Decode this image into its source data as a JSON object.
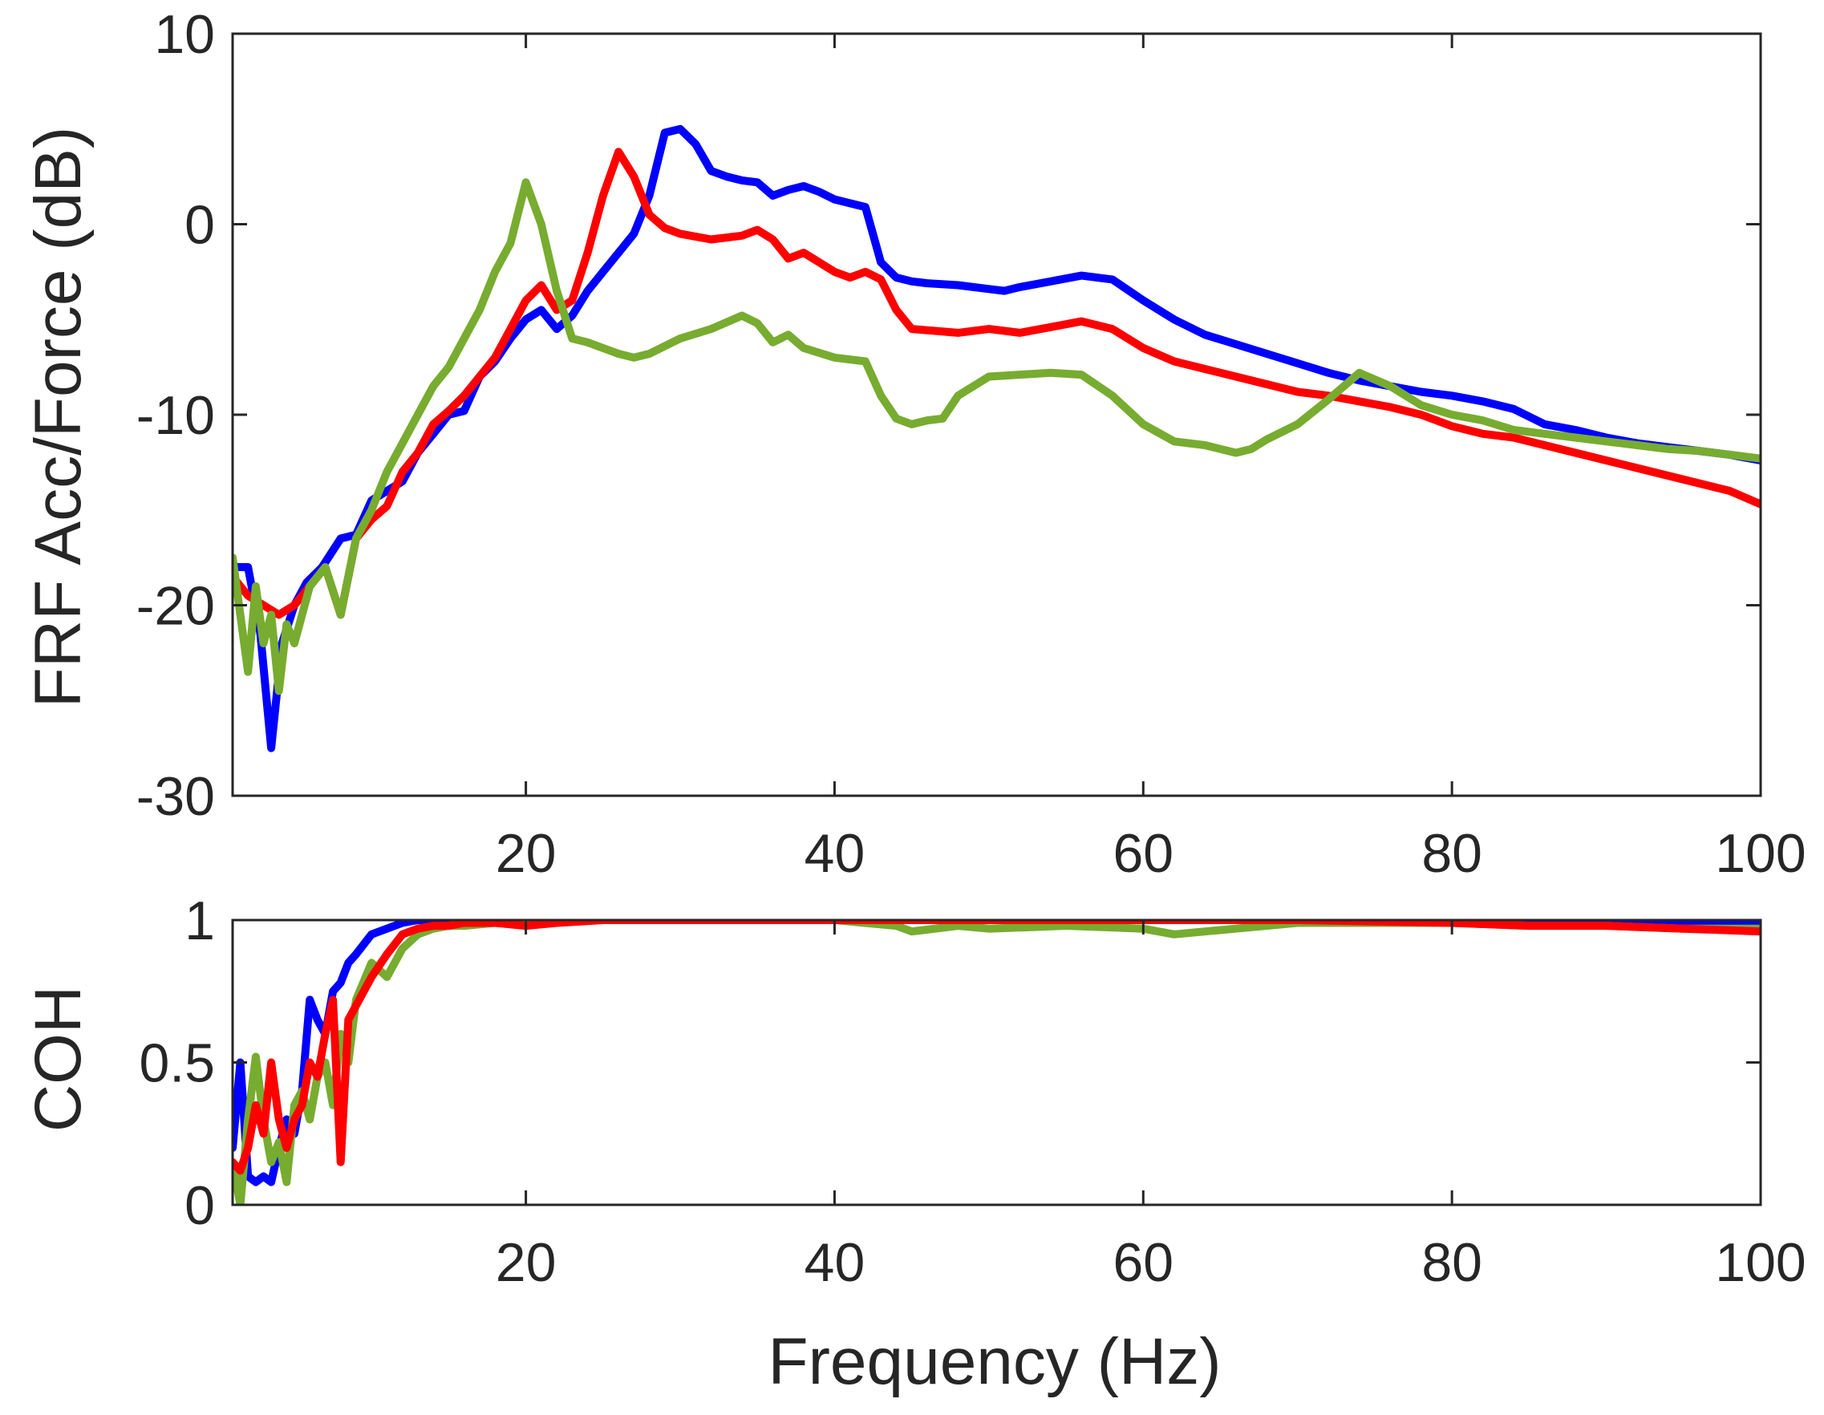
{
  "chart_data": [
    {
      "type": "line",
      "ylabel": "FRF Acc/Force (dB)",
      "xlabel": "",
      "xlim": [
        1,
        100
      ],
      "ylim": [
        -30,
        10
      ],
      "xticks": [
        20,
        40,
        60,
        80,
        100
      ],
      "yticks": [
        -30,
        -20,
        -10,
        0,
        10
      ],
      "xtick_labels": [
        "20",
        "40",
        "60",
        "80",
        "100"
      ],
      "ytick_labels": [
        "-30",
        "-20",
        "-10",
        "0",
        "10"
      ],
      "grid": false,
      "legend": null,
      "series": [
        {
          "name": "blue",
          "color": "#0000FF",
          "x": [
            1,
            2,
            2.8,
            3.5,
            4.2,
            5,
            5.8,
            6.8,
            8,
            9,
            10,
            11,
            12,
            13,
            14,
            15,
            16,
            17,
            18,
            19,
            20,
            21,
            22,
            23,
            24,
            25,
            26,
            27,
            28,
            29,
            30,
            31,
            32,
            33,
            34,
            35,
            36,
            37,
            38,
            39,
            40,
            41,
            42,
            43,
            44,
            45,
            46,
            48,
            50,
            51,
            52,
            54,
            56,
            58,
            60,
            62,
            64,
            66,
            68,
            70,
            72,
            74,
            76,
            78,
            80,
            82,
            84,
            86,
            88,
            90,
            92,
            94,
            96,
            98,
            100
          ],
          "y": [
            -18,
            -18,
            -21.5,
            -27.5,
            -22,
            -20,
            -18.8,
            -18,
            -16.5,
            -16.3,
            -14.5,
            -14,
            -13.5,
            -12,
            -11,
            -10,
            -9.8,
            -8,
            -7.2,
            -6,
            -5,
            -4.5,
            -5.5,
            -4.8,
            -3.5,
            -2.5,
            -1.5,
            -0.5,
            1.5,
            4.8,
            5,
            4.2,
            2.8,
            2.5,
            2.3,
            2.2,
            1.5,
            1.8,
            2.0,
            1.7,
            1.3,
            1.1,
            0.9,
            -2.0,
            -2.8,
            -3.0,
            -3.1,
            -3.2,
            -3.4,
            -3.5,
            -3.3,
            -3.0,
            -2.7,
            -2.9,
            -4.0,
            -5.0,
            -5.8,
            -6.3,
            -6.8,
            -7.3,
            -7.8,
            -8.2,
            -8.5,
            -8.8,
            -9.0,
            -9.3,
            -9.7,
            -10.5,
            -10.8,
            -11.2,
            -11.5,
            -11.7,
            -11.9,
            -12.1,
            -12.4
          ]
        },
        {
          "name": "red",
          "color": "#FF0000",
          "x": [
            1,
            2,
            3,
            4,
            5,
            6,
            7,
            8,
            9,
            10,
            11,
            12,
            13,
            14,
            15,
            16,
            17,
            18,
            19,
            20,
            21,
            22,
            23,
            24,
            25,
            26,
            27,
            28,
            29,
            30,
            32,
            34,
            35,
            36,
            37,
            38,
            40,
            41,
            42,
            43,
            44,
            45,
            48,
            50,
            52,
            54,
            56,
            58,
            60,
            62,
            64,
            66,
            68,
            70,
            72,
            74,
            76,
            78,
            80,
            82,
            84,
            86,
            88,
            90,
            92,
            94,
            96,
            98,
            100
          ],
          "y": [
            -18.5,
            -19.5,
            -20,
            -20.5,
            -20,
            -19,
            -18,
            -20.5,
            -16.5,
            -15.5,
            -14.8,
            -13,
            -12,
            -10.5,
            -9.8,
            -9,
            -8,
            -7,
            -5.5,
            -4,
            -3.2,
            -4.5,
            -4,
            -1.5,
            1.5,
            3.8,
            2.5,
            0.5,
            -0.2,
            -0.5,
            -0.8,
            -0.6,
            -0.3,
            -0.8,
            -1.8,
            -1.5,
            -2.5,
            -2.8,
            -2.5,
            -2.9,
            -4.5,
            -5.5,
            -5.7,
            -5.5,
            -5.7,
            -5.4,
            -5.1,
            -5.5,
            -6.5,
            -7.2,
            -7.6,
            -8.0,
            -8.4,
            -8.8,
            -9.0,
            -9.3,
            -9.6,
            -10.0,
            -10.6,
            -11.0,
            -11.2,
            -11.6,
            -12.0,
            -12.4,
            -12.8,
            -13.2,
            -13.6,
            -14.0,
            -14.7
          ]
        },
        {
          "name": "green",
          "color": "#77AC30",
          "x": [
            1,
            2,
            2.5,
            3,
            3.5,
            4,
            4.5,
            5,
            5.5,
            6,
            7,
            8,
            9,
            10,
            11,
            12,
            13,
            14,
            15,
            16,
            17,
            18,
            19,
            20,
            21,
            22,
            23,
            24,
            25,
            26,
            27,
            28,
            30,
            32,
            34,
            35,
            36,
            37,
            38,
            40,
            42,
            43,
            44,
            45,
            46,
            47,
            48,
            50,
            52,
            54,
            56,
            58,
            60,
            62,
            64,
            66,
            67,
            68,
            70,
            72,
            74,
            76,
            78,
            80,
            82,
            84,
            86,
            88,
            90,
            92,
            94,
            96,
            98,
            100
          ],
          "y": [
            -17.5,
            -23.5,
            -19,
            -22,
            -20.5,
            -24.5,
            -21,
            -22,
            -20.5,
            -19,
            -18,
            -20.5,
            -16.5,
            -15,
            -13,
            -11.5,
            -10,
            -8.5,
            -7.5,
            -6,
            -4.5,
            -2.5,
            -1,
            2.2,
            0,
            -3.5,
            -6,
            -6.2,
            -6.5,
            -6.8,
            -7.0,
            -6.8,
            -6.0,
            -5.5,
            -4.8,
            -5.2,
            -6.2,
            -5.8,
            -6.5,
            -7.0,
            -7.2,
            -9.0,
            -10.2,
            -10.5,
            -10.3,
            -10.2,
            -9.0,
            -8.0,
            -7.9,
            -7.8,
            -7.9,
            -9.0,
            -10.5,
            -11.4,
            -11.6,
            -12.0,
            -11.8,
            -11.3,
            -10.5,
            -9.2,
            -7.8,
            -8.5,
            -9.5,
            -10.0,
            -10.3,
            -10.8,
            -11.0,
            -11.2,
            -11.4,
            -11.6,
            -11.8,
            -11.9,
            -12.1,
            -12.3
          ]
        }
      ]
    },
    {
      "type": "line",
      "ylabel": "COH",
      "xlabel": "Frequency (Hz)",
      "xlim": [
        1,
        100
      ],
      "ylim": [
        0,
        1
      ],
      "xticks": [
        20,
        40,
        60,
        80,
        100
      ],
      "yticks": [
        0,
        0.5,
        1
      ],
      "xtick_labels": [
        "20",
        "40",
        "60",
        "80",
        "100"
      ],
      "ytick_labels": [
        "0",
        "0.5",
        "1"
      ],
      "grid": false,
      "legend": null,
      "series": [
        {
          "name": "blue",
          "color": "#0000FF",
          "x": [
            1,
            1.5,
            2,
            2.5,
            3,
            3.5,
            4,
            4.5,
            5,
            5.5,
            6,
            6.5,
            7,
            7.5,
            8,
            8.5,
            9,
            10,
            11,
            12,
            13,
            14,
            15,
            16,
            18,
            20,
            25,
            30,
            40,
            50,
            60,
            70,
            80,
            90,
            95,
            100
          ],
          "y": [
            0.2,
            0.5,
            0.1,
            0.08,
            0.1,
            0.08,
            0.2,
            0.3,
            0.25,
            0.4,
            0.72,
            0.65,
            0.6,
            0.75,
            0.78,
            0.85,
            0.88,
            0.95,
            0.97,
            0.99,
            1.0,
            1.0,
            1.0,
            1.0,
            1.0,
            1.0,
            1.0,
            1.0,
            1.0,
            1.0,
            1.0,
            1.0,
            1.0,
            0.99,
            0.99,
            0.99
          ]
        },
        {
          "name": "green",
          "color": "#77AC30",
          "x": [
            1,
            1.5,
            2,
            2.5,
            3,
            3.5,
            4,
            4.5,
            5,
            5.5,
            6,
            6.5,
            7,
            7.5,
            8,
            8.5,
            9,
            10,
            11,
            12,
            13,
            14,
            15,
            16,
            18,
            20,
            25,
            30,
            40,
            44,
            45,
            48,
            50,
            55,
            60,
            62,
            64,
            66,
            70,
            75,
            80,
            85,
            90,
            95,
            100
          ],
          "y": [
            0.15,
            0.0,
            0.3,
            0.52,
            0.3,
            0.15,
            0.22,
            0.08,
            0.35,
            0.4,
            0.3,
            0.45,
            0.5,
            0.35,
            0.6,
            0.5,
            0.72,
            0.85,
            0.8,
            0.9,
            0.95,
            0.97,
            0.98,
            0.98,
            0.99,
            0.99,
            1.0,
            1.0,
            1.0,
            0.98,
            0.96,
            0.98,
            0.97,
            0.98,
            0.97,
            0.95,
            0.96,
            0.97,
            0.99,
            0.99,
            0.99,
            0.98,
            0.98,
            0.97,
            0.97
          ]
        },
        {
          "name": "red",
          "color": "#FF0000",
          "x": [
            1,
            1.5,
            2,
            2.5,
            3,
            3.5,
            4,
            4.5,
            5,
            5.5,
            6,
            6.5,
            7,
            7.5,
            8,
            8.5,
            9,
            10,
            11,
            12,
            13,
            14,
            15,
            16,
            18,
            20,
            22,
            25,
            30,
            40,
            50,
            60,
            70,
            80,
            85,
            90,
            95,
            100
          ],
          "y": [
            0.15,
            0.12,
            0.2,
            0.35,
            0.25,
            0.5,
            0.3,
            0.2,
            0.3,
            0.35,
            0.5,
            0.45,
            0.6,
            0.72,
            0.15,
            0.65,
            0.7,
            0.8,
            0.88,
            0.95,
            0.97,
            0.98,
            0.98,
            0.99,
            0.99,
            0.98,
            0.99,
            1.0,
            1.0,
            1.0,
            1.0,
            1.0,
            1.0,
            0.99,
            0.98,
            0.98,
            0.97,
            0.96
          ]
        }
      ]
    }
  ]
}
